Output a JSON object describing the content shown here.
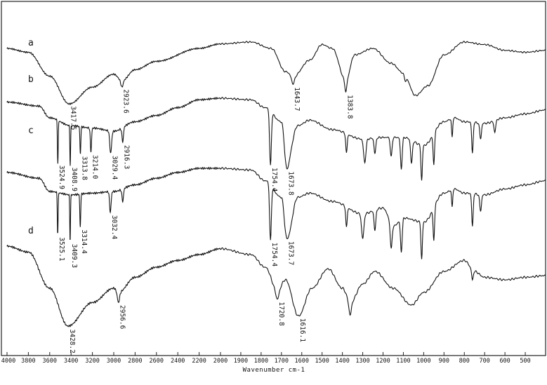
{
  "chart_data": {
    "type": "line",
    "title": "",
    "xlabel": "Wavenumber cm-1",
    "ylabel": "",
    "xlim": [
      4000,
      400
    ],
    "x_reversed": true,
    "grid": false,
    "legend": "none",
    "x_ticks": [
      "4000",
      "3800",
      "3600",
      "3400",
      "3200",
      "3000",
      "2800",
      "2600",
      "2400",
      "2200",
      "2000",
      "1900",
      "1800",
      "1700",
      "1600",
      "1500",
      "1400",
      "1300",
      "1200",
      "1100",
      "1000",
      "900",
      "800",
      "700",
      "600",
      "500"
    ],
    "series": [
      {
        "name": "a",
        "color": "#111111",
        "peaks": [
          {
            "x": 3417.5,
            "label": "3417.5"
          },
          {
            "x": 2923.6,
            "label": "2923.6"
          },
          {
            "x": 1643.7,
            "label": "1643.7"
          },
          {
            "x": 1383.8,
            "label": "1383.8"
          }
        ]
      },
      {
        "name": "b",
        "color": "#111111",
        "peaks": [
          {
            "x": 3524.9,
            "label": "3524.9"
          },
          {
            "x": 3408.9,
            "label": "3408.9"
          },
          {
            "x": 3313.8,
            "label": "3313.8"
          },
          {
            "x": 3214.0,
            "label": "3214.0"
          },
          {
            "x": 3029.4,
            "label": "3029.4"
          },
          {
            "x": 2916.3,
            "label": "2916.3"
          },
          {
            "x": 1754.4,
            "label": "1754.4"
          },
          {
            "x": 1673.8,
            "label": "1673.8"
          }
        ]
      },
      {
        "name": "c",
        "color": "#111111",
        "peaks": [
          {
            "x": 3525.1,
            "label": "3525.1"
          },
          {
            "x": 3409.3,
            "label": "3409.3"
          },
          {
            "x": 3314.4,
            "label": "3314.4"
          },
          {
            "x": 3032.4,
            "label": "3032.4"
          },
          {
            "x": 1754.4,
            "label": "1754.4"
          },
          {
            "x": 1673.7,
            "label": "1673.7"
          }
        ]
      },
      {
        "name": "d",
        "color": "#111111",
        "peaks": [
          {
            "x": 3428.2,
            "label": "3428.2"
          },
          {
            "x": 2956.6,
            "label": "2956.6"
          },
          {
            "x": 1720.8,
            "label": "1720.8"
          },
          {
            "x": 1616.1,
            "label": "1616.1"
          }
        ]
      }
    ]
  }
}
